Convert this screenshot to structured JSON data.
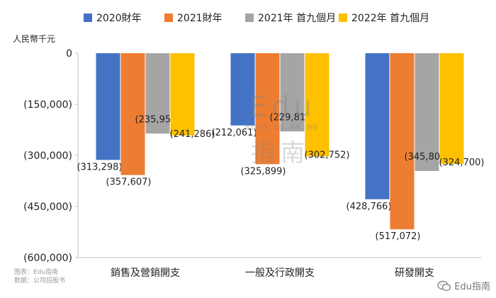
{
  "chart_data": {
    "type": "bar",
    "unit_label": "人民幣千元",
    "categories": [
      "銷售及營銷開支",
      "一般及行政開支",
      "研發開支"
    ],
    "series": [
      {
        "name": "2020財年",
        "color": "#4472C4",
        "values": [
          -313298,
          -212061,
          -428766
        ],
        "labels": [
          "(313,298)",
          "(212,061)",
          "(428,766)"
        ]
      },
      {
        "name": "2021財年",
        "color": "#ED7D31",
        "values": [
          -357607,
          -325899,
          -517072
        ],
        "labels": [
          "(357,607)",
          "(325,899)",
          "(517,072)"
        ]
      },
      {
        "name": "2021年 首九個月",
        "color": "#A5A5A5",
        "values": [
          -235952,
          -229811,
          -345803
        ],
        "labels": [
          "(235,952)",
          "(229,811)",
          "(345,803)"
        ]
      },
      {
        "name": "2022年 首九個月",
        "color": "#FFC000",
        "values": [
          -241286,
          -302752,
          -324700
        ],
        "labels": [
          "(241,286)",
          "(302,752)",
          "(324,700)"
        ]
      }
    ],
    "ylim": [
      -600000,
      0
    ],
    "yticks": [
      0,
      -150000,
      -300000,
      -450000,
      -600000
    ],
    "ytick_labels": [
      "0",
      "(150,000)",
      "(300,000)",
      "(450,000)",
      "(600,000)"
    ],
    "legend_position": "top",
    "grid": false
  },
  "source": {
    "line1": "图表：Edu指南",
    "line2": "数据：公司招股书"
  },
  "watermark": {
    "title": "Edu",
    "tagline": "教育行业，就话，深度，独家",
    "chinese": "指南"
  },
  "brand": {
    "icon": "wechat-icon",
    "text": "Edu指南"
  }
}
